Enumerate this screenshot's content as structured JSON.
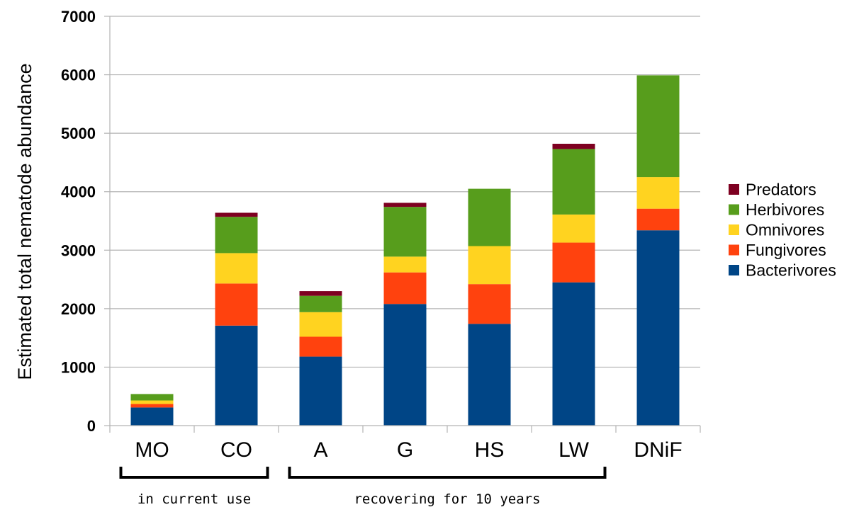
{
  "chart_data": {
    "type": "bar",
    "stacked": true,
    "ylabel": "Estimated total nematode abundance",
    "xlabel": "",
    "ylim": [
      0,
      7000
    ],
    "yticks": [
      0,
      1000,
      2000,
      3000,
      4000,
      5000,
      6000,
      7000
    ],
    "grid": true,
    "legend_position": "right",
    "categories": [
      "MO",
      "CO",
      "A",
      "G",
      "HS",
      "LW",
      "DNiF"
    ],
    "series": [
      {
        "name": "Bacterivores",
        "color": "#004586",
        "values": [
          310,
          1710,
          1180,
          2080,
          1740,
          2450,
          3340
        ]
      },
      {
        "name": "Fungivores",
        "color": "#ff420e",
        "values": [
          60,
          720,
          340,
          540,
          680,
          680,
          370
        ]
      },
      {
        "name": "Omnivores",
        "color": "#ffd320",
        "values": [
          60,
          520,
          420,
          270,
          650,
          480,
          540
        ]
      },
      {
        "name": "Herbivores",
        "color": "#579d1c",
        "values": [
          110,
          620,
          280,
          850,
          980,
          1120,
          1740
        ]
      },
      {
        "name": "Predators",
        "color": "#7e0021",
        "values": [
          0,
          70,
          80,
          70,
          0,
          90,
          0
        ]
      }
    ],
    "groups": [
      {
        "label": "in current use",
        "categories": [
          "MO",
          "CO"
        ]
      },
      {
        "label": "recovering for 10 years",
        "categories": [
          "A",
          "G",
          "HS",
          "LW"
        ]
      }
    ]
  }
}
